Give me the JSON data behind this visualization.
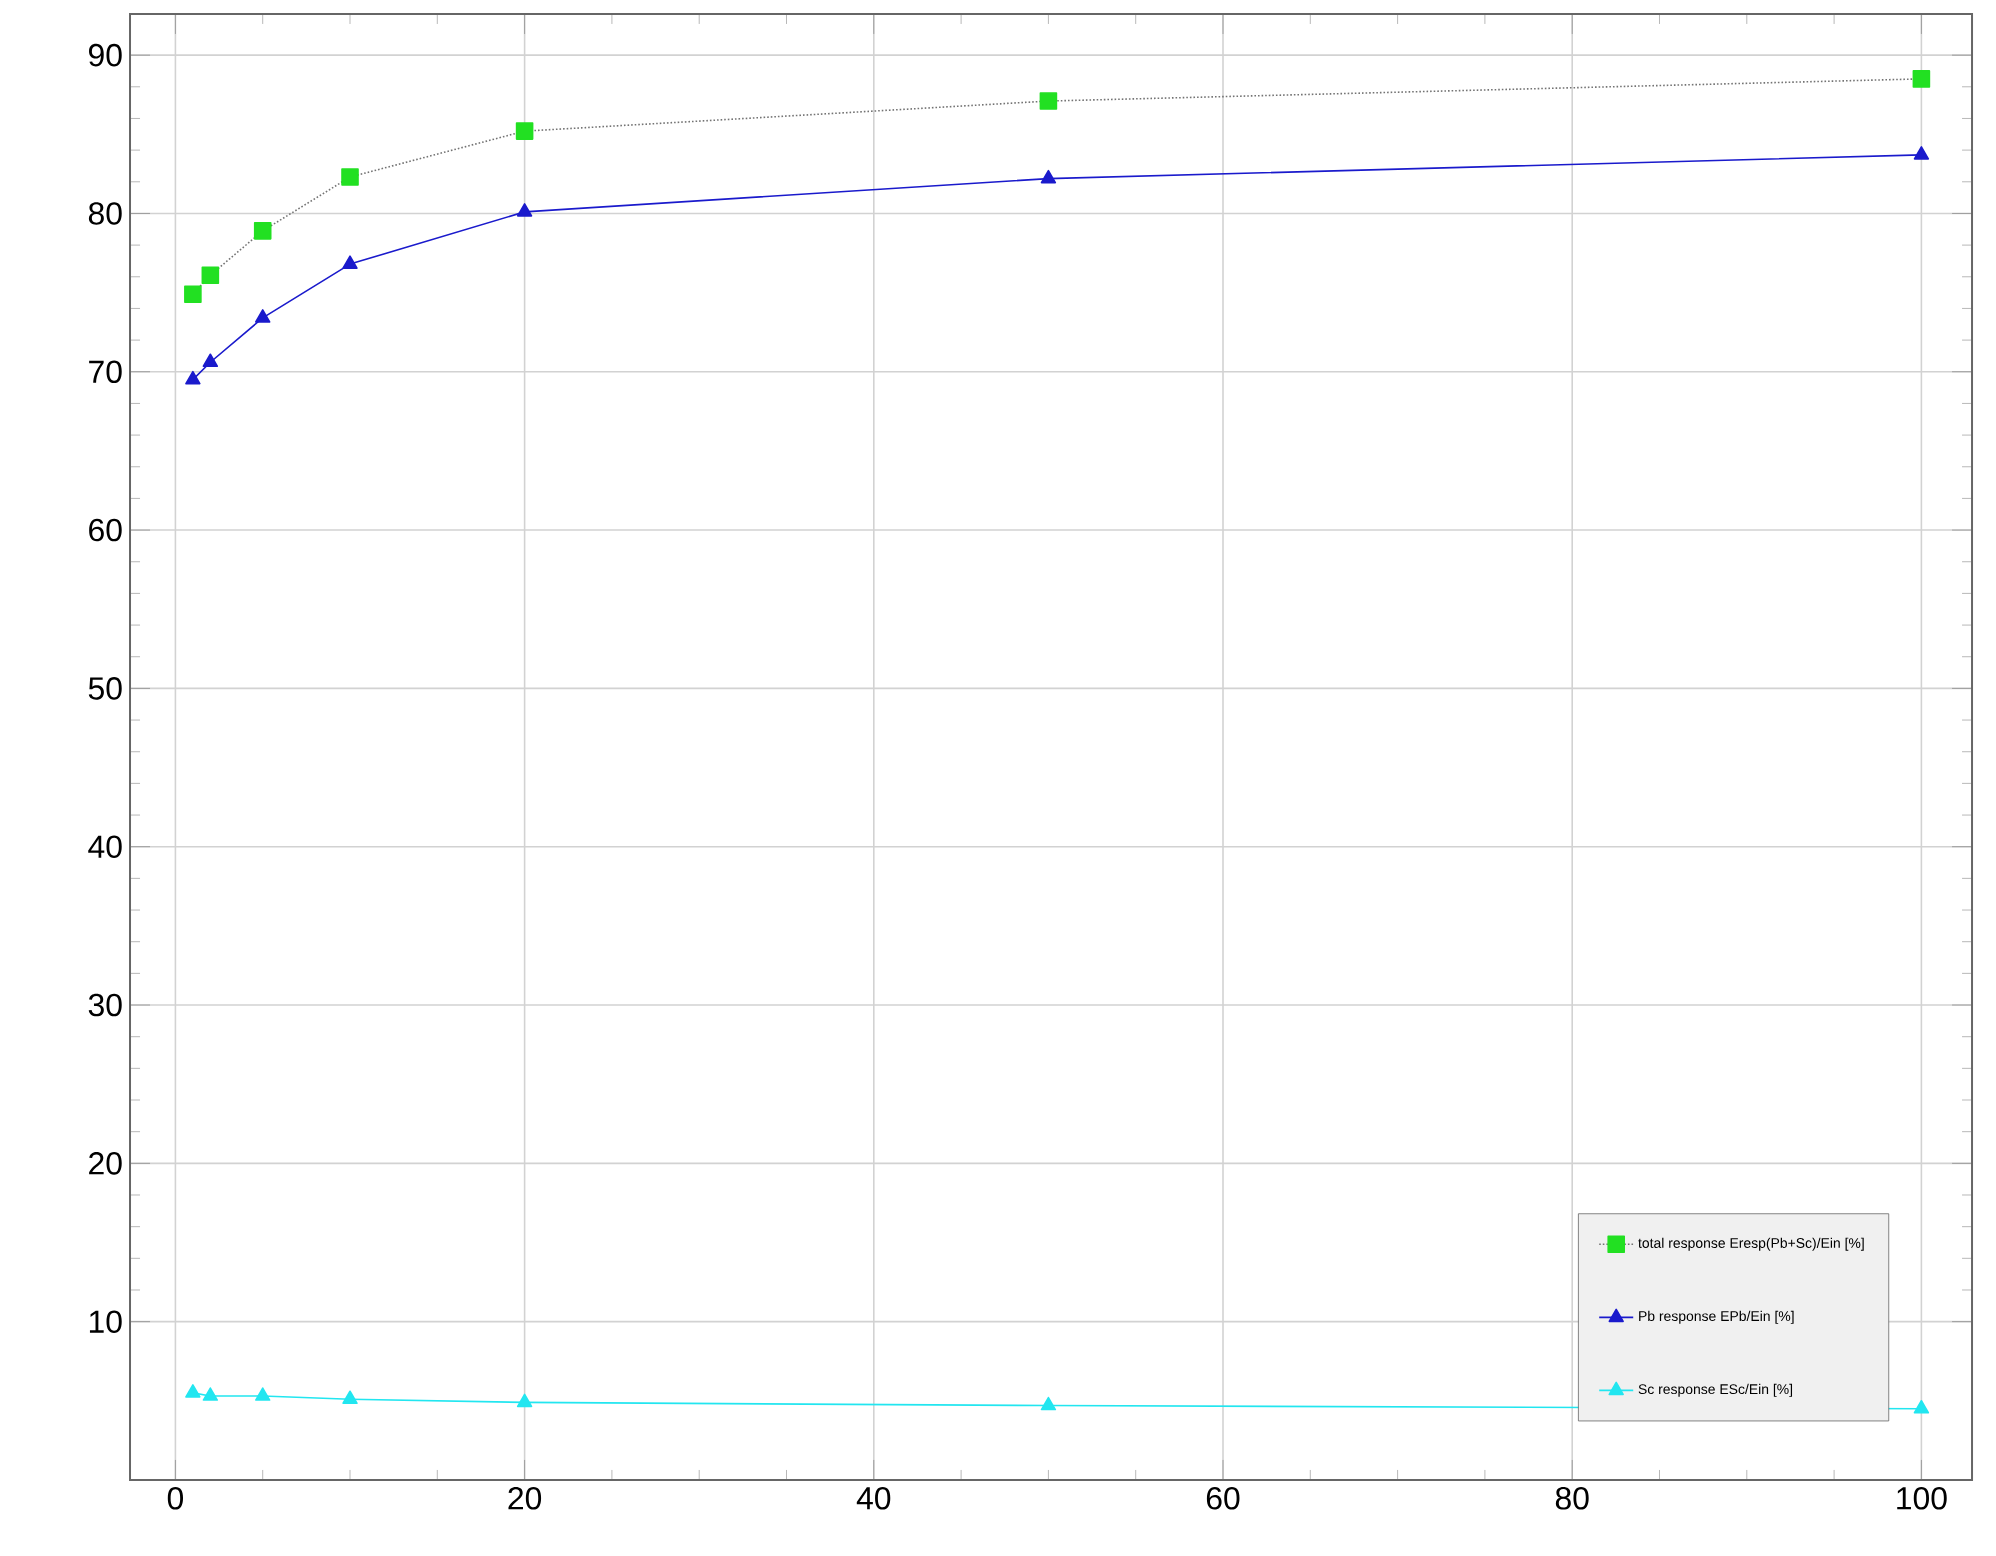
{
  "chart_data": {
    "type": "line",
    "x": [
      1,
      2,
      5,
      10,
      20,
      50,
      100
    ],
    "series": [
      {
        "name": "total response Eresp(Pb+Sc)/Ein [%]",
        "color": "#22e022",
        "marker": "square",
        "line_style": "dotted",
        "values": [
          74.9,
          76.1,
          78.9,
          82.3,
          85.2,
          87.1,
          88.5
        ]
      },
      {
        "name": "Pb response EPb/Ein [%]",
        "color": "#1a1acc",
        "marker": "triangle",
        "line_style": "solid",
        "values": [
          69.5,
          70.6,
          73.4,
          76.8,
          80.1,
          82.2,
          83.7
        ]
      },
      {
        "name": "Sc response ESc/Ein [%]",
        "color": "#22e6f0",
        "marker": "triangle",
        "line_style": "solid",
        "values": [
          5.5,
          5.3,
          5.3,
          5.1,
          4.9,
          4.7,
          4.5
        ]
      }
    ],
    "xlim": [
      -2.6,
      102.9
    ],
    "ylim": [
      0,
      92.6
    ],
    "xticks": [
      0,
      20,
      40,
      60,
      80,
      100
    ],
    "yticks": [
      10,
      20,
      30,
      40,
      50,
      60,
      70,
      80,
      90
    ],
    "grid": true,
    "legend": "bottom right"
  }
}
